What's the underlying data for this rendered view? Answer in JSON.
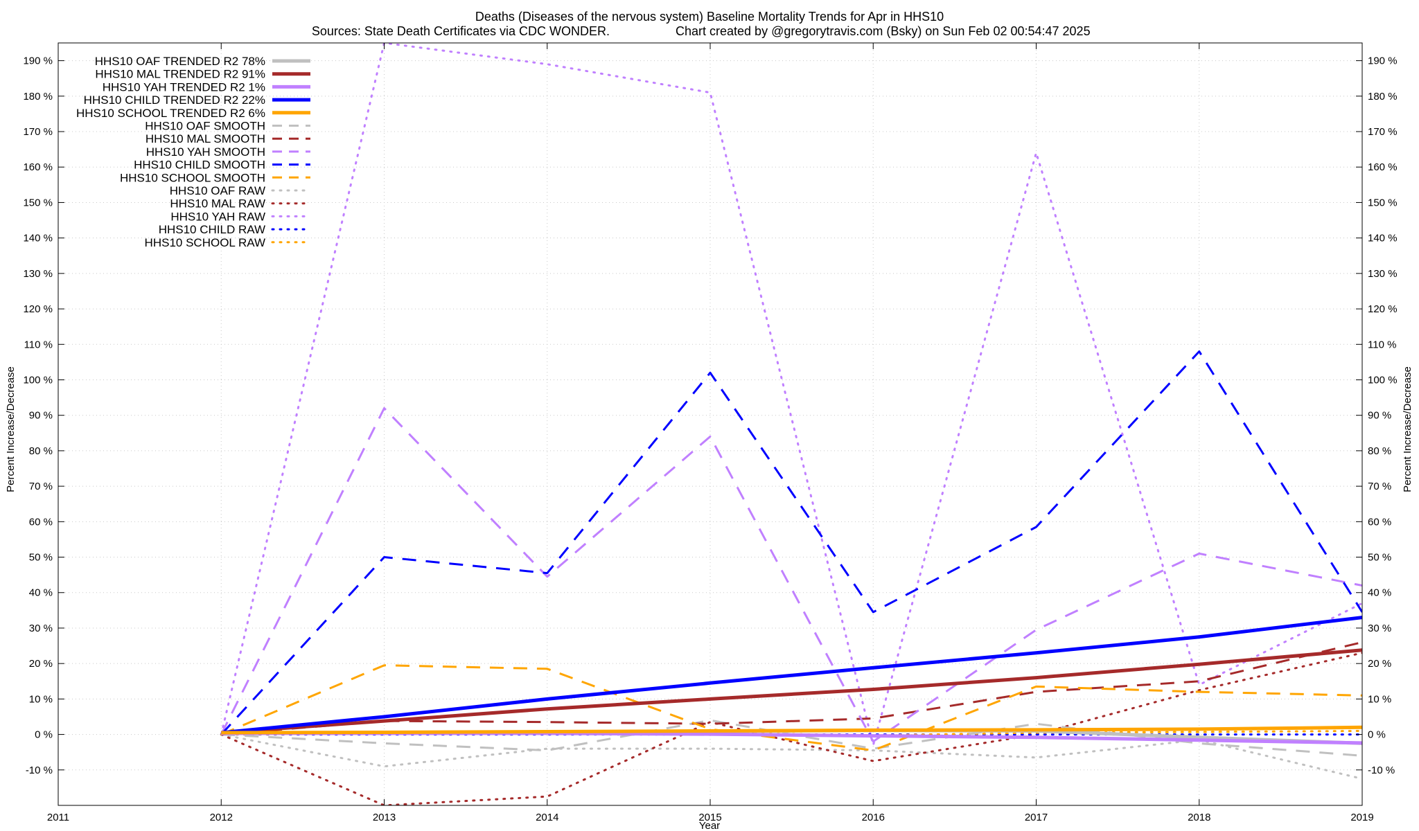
{
  "chart_data": {
    "type": "line",
    "title": "Deaths (Diseases of the nervous system)  Baseline Mortality Trends for Apr in HHS10",
    "subtitle_left": "Sources: State Death Certificates via CDC WONDER.",
    "subtitle_right": "Chart created by @gregorytravis.com (Bsky) on Sun Feb 02 00:54:47 2025",
    "xlabel": "Year",
    "ylabel": "Percent Increase/Decrease",
    "ylabel_right": "Percent Increase/Decrease",
    "xlim": [
      2011,
      2019
    ],
    "ylim": [
      -20,
      195
    ],
    "x_ticks": [
      {
        "value": 2011,
        "label": "2011"
      },
      {
        "value": 2012,
        "label": "2012"
      },
      {
        "value": 2013,
        "label": "2013"
      },
      {
        "value": 2014,
        "label": "2014"
      },
      {
        "value": 2015,
        "label": "2015"
      },
      {
        "value": 2016,
        "label": "2016"
      },
      {
        "value": 2017,
        "label": "2017"
      },
      {
        "value": 2018,
        "label": "2018"
      },
      {
        "value": 2019,
        "label": "2019"
      }
    ],
    "y_ticks": [
      {
        "value": -10,
        "label": "-10 %"
      },
      {
        "value": 0,
        "label": "0 %"
      },
      {
        "value": 10,
        "label": "10 %"
      },
      {
        "value": 20,
        "label": "20 %"
      },
      {
        "value": 30,
        "label": "30 %"
      },
      {
        "value": 40,
        "label": "40 %"
      },
      {
        "value": 50,
        "label": "50 %"
      },
      {
        "value": 60,
        "label": "60 %"
      },
      {
        "value": 70,
        "label": "70 %"
      },
      {
        "value": 80,
        "label": "80 %"
      },
      {
        "value": 90,
        "label": "90 %"
      },
      {
        "value": 100,
        "label": "100 %"
      },
      {
        "value": 110,
        "label": "110 %"
      },
      {
        "value": 120,
        "label": "120 %"
      },
      {
        "value": 130,
        "label": "130 %"
      },
      {
        "value": 140,
        "label": "140 %"
      },
      {
        "value": 150,
        "label": "150 %"
      },
      {
        "value": 160,
        "label": "160 %"
      },
      {
        "value": 170,
        "label": "170 %"
      },
      {
        "value": 180,
        "label": "180 %"
      },
      {
        "value": 190,
        "label": "190 %"
      }
    ],
    "grid": true,
    "legend_position": "top-left",
    "x": [
      2012,
      2013,
      2014,
      2015,
      2016,
      2017,
      2018,
      2019
    ],
    "series": [
      {
        "name": "HHS10 OAF TRENDED R2  78%",
        "style": "solid",
        "color": "#c0c0c0",
        "values": [
          0.3,
          0.5,
          0.7,
          0.9,
          1.1,
          1.0,
          -0.8,
          -2.5
        ]
      },
      {
        "name": "HHS10 MAL TRENDED R2  91%",
        "style": "solid",
        "color": "#a52a2a",
        "values": [
          0.5,
          3.8,
          7.2,
          10.0,
          12.7,
          16.0,
          19.8,
          23.8
        ]
      },
      {
        "name": "HHS10 YAH TRENDED R2   1%",
        "style": "solid",
        "color": "#c080ff",
        "values": [
          0.3,
          0.3,
          0.3,
          0.1,
          -0.4,
          -0.8,
          -1.6,
          -2.4
        ]
      },
      {
        "name": "HHS10 CHILD TRENDED R2  22%",
        "style": "solid",
        "color": "#0000ff",
        "values": [
          0.5,
          5.0,
          10.0,
          14.5,
          18.8,
          23.0,
          27.5,
          33.0
        ]
      },
      {
        "name": "HHS10 SCHOOL TRENDED R2   6%",
        "style": "solid",
        "color": "#ffa500",
        "values": [
          0.5,
          0.6,
          0.8,
          1.0,
          1.2,
          1.3,
          1.5,
          2.0
        ]
      },
      {
        "name": "HHS10 OAF SMOOTH",
        "style": "dashed",
        "color": "#c0c0c0",
        "values": [
          0,
          -2.5,
          -4.5,
          4.0,
          -4.0,
          3.0,
          -2.5,
          -6.0
        ]
      },
      {
        "name": "HHS10 MAL SMOOTH",
        "style": "dashed",
        "color": "#a52a2a",
        "values": [
          0,
          3.8,
          3.5,
          3.0,
          4.5,
          12.0,
          15.0,
          26.0
        ]
      },
      {
        "name": "HHS10 YAH SMOOTH",
        "style": "dashed",
        "color": "#c080ff",
        "values": [
          0,
          92.0,
          44.5,
          84.0,
          -2.0,
          29.5,
          51.0,
          42.0
        ]
      },
      {
        "name": "HHS10 CHILD SMOOTH",
        "style": "dashed",
        "color": "#0000ff",
        "values": [
          0,
          50.0,
          45.5,
          102.0,
          34.5,
          58.5,
          108.0,
          34.5
        ]
      },
      {
        "name": "HHS10 SCHOOL SMOOTH",
        "style": "dashed",
        "color": "#ffa500",
        "values": [
          0,
          19.5,
          18.5,
          1.5,
          -4.5,
          13.5,
          12.0,
          11.0
        ]
      },
      {
        "name": "HHS10 OAF RAW",
        "style": "dotted",
        "color": "#c0c0c0",
        "values": [
          0,
          -9.0,
          -4.0,
          -4.0,
          -4.5,
          -6.5,
          -1.5,
          -12.5
        ]
      },
      {
        "name": "HHS10 MAL RAW",
        "style": "dotted",
        "color": "#a52a2a",
        "values": [
          0,
          -20.0,
          -17.5,
          3.5,
          -7.5,
          0.0,
          12.5,
          23.0
        ]
      },
      {
        "name": "HHS10 YAH RAW",
        "style": "dotted",
        "color": "#c080ff",
        "values": [
          0,
          195.0,
          189.0,
          181.0,
          -3.0,
          164.0,
          14.0,
          37.0
        ]
      },
      {
        "name": "HHS10 CHILD RAW",
        "style": "dotted",
        "color": "#0000ff",
        "values": [
          0,
          0,
          0,
          0,
          0,
          0,
          0,
          0
        ]
      },
      {
        "name": "HHS10 SCHOOL RAW",
        "style": "dotted",
        "color": "#ffa500",
        "values": [
          0,
          0.2,
          0.3,
          0.5,
          -0.3,
          0.5,
          0.7,
          1.0
        ]
      }
    ]
  }
}
